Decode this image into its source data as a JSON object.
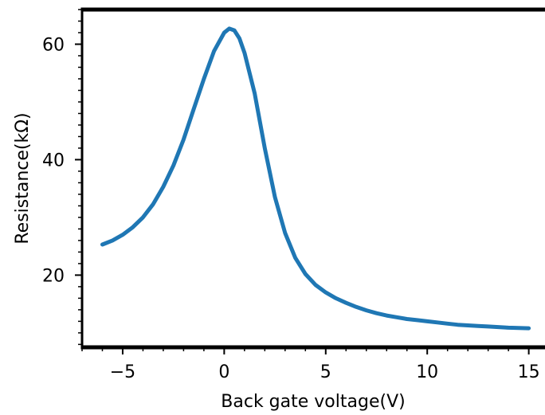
{
  "chart_data": {
    "type": "line",
    "title": "",
    "xlabel": "Back gate voltage(V)",
    "ylabel": "Resistance(kΩ)",
    "xlim": [
      -7,
      15.8
    ],
    "ylim": [
      7.5,
      66
    ],
    "xticks": [
      -5,
      0,
      5,
      10,
      15
    ],
    "xtick_labels": [
      "−5",
      "0",
      "5",
      "10",
      "15"
    ],
    "yticks": [
      20,
      40,
      60
    ],
    "ytick_labels": [
      "20",
      "40",
      "60"
    ],
    "grid": false,
    "series_color": "#1f77b4",
    "series": [
      {
        "x": [
          -6,
          -5.5,
          -5,
          -4.5,
          -4,
          -3.5,
          -3,
          -2.5,
          -2,
          -1.5,
          -1,
          -0.5,
          0,
          0.25,
          0.5,
          0.75,
          1,
          1.5,
          2,
          2.5,
          3,
          3.5,
          4,
          4.5,
          5,
          5.5,
          6,
          6.5,
          7,
          7.5,
          8,
          8.5,
          9,
          9.5,
          10,
          10.5,
          11,
          11.5,
          12,
          12.5,
          13,
          13.5,
          14,
          14.5,
          15
        ],
        "y": [
          25.3,
          26.0,
          27.0,
          28.3,
          30.0,
          32.3,
          35.3,
          39.0,
          43.5,
          48.8,
          54.0,
          58.8,
          62.0,
          62.7,
          62.4,
          61.0,
          58.5,
          51.5,
          42.0,
          33.5,
          27.3,
          23.0,
          20.2,
          18.3,
          17.0,
          16.0,
          15.2,
          14.5,
          13.9,
          13.4,
          13.0,
          12.7,
          12.4,
          12.2,
          12.0,
          11.8,
          11.6,
          11.4,
          11.3,
          11.2,
          11.1,
          11.0,
          10.9,
          10.85,
          10.8
        ]
      }
    ]
  }
}
